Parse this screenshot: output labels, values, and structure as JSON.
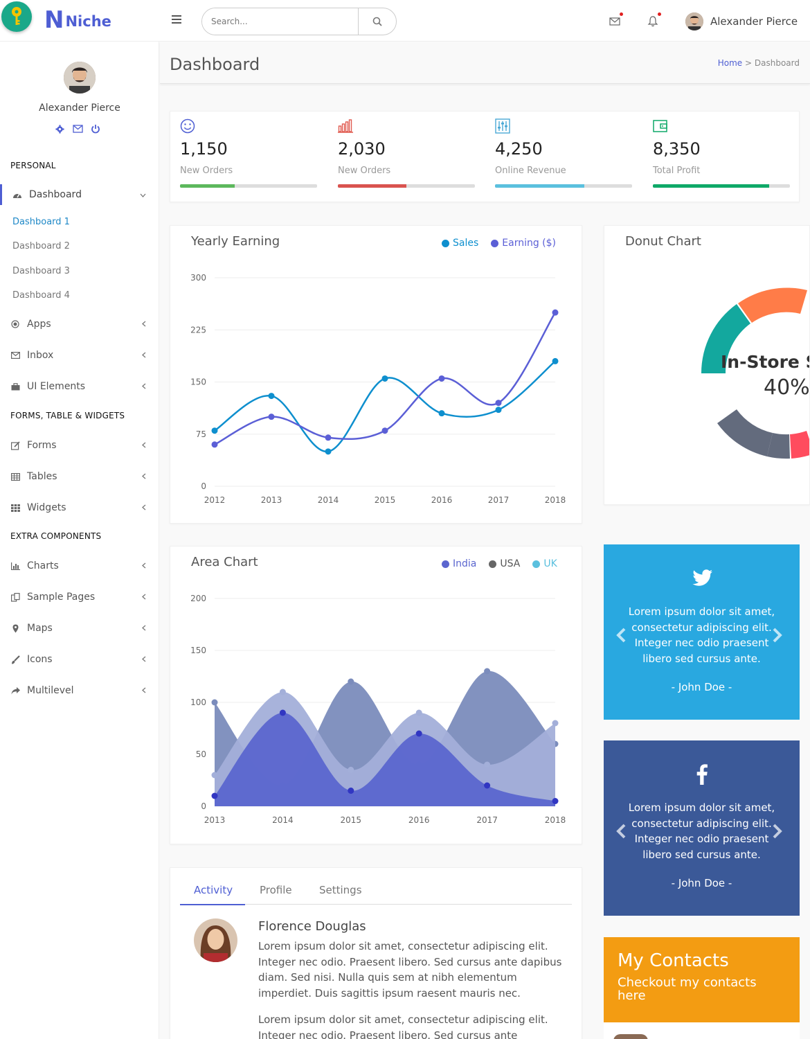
{
  "brand": {
    "letter": "N",
    "name": "Niche"
  },
  "search": {
    "placeholder": "Search..."
  },
  "user": {
    "name": "Alexander Pierce"
  },
  "sidebar": {
    "profile_name": "Alexander Pierce",
    "headers": [
      "PERSONAL",
      "FORMS, TABLE & WIDGETS",
      "EXTRA COMPONENTS"
    ],
    "dashboard": {
      "label": "Dashboard",
      "sub": [
        "Dashboard 1",
        "Dashboard 2",
        "Dashboard 3",
        "Dashboard 4"
      ]
    },
    "items": [
      {
        "label": "Apps",
        "icon": "target-icon"
      },
      {
        "label": "Inbox",
        "icon": "envelope-icon"
      },
      {
        "label": "UI Elements",
        "icon": "briefcase-icon"
      },
      {
        "label": "Forms",
        "icon": "edit-icon"
      },
      {
        "label": "Tables",
        "icon": "table-icon"
      },
      {
        "label": "Widgets",
        "icon": "grid-icon"
      },
      {
        "label": "Charts",
        "icon": "bar-chart-icon"
      },
      {
        "label": "Sample Pages",
        "icon": "copy-icon"
      },
      {
        "label": "Maps",
        "icon": "map-pin-icon"
      },
      {
        "label": "Icons",
        "icon": "paint-brush-icon"
      },
      {
        "label": "Multilevel",
        "icon": "share-icon"
      }
    ]
  },
  "page": {
    "title": "Dashboard",
    "breadcrumb_home": "Home",
    "breadcrumb_sep": ">",
    "breadcrumb_current": "Dashboard"
  },
  "stats": [
    {
      "value": "1,150",
      "label": "New Orders",
      "progress": 0.4,
      "color": "#5cb85c",
      "icon": "smile-icon"
    },
    {
      "value": "2,030",
      "label": "New Orders",
      "progress": 0.5,
      "color": "#d9534f",
      "icon": "bar-chart-icon"
    },
    {
      "value": "4,250",
      "label": "Online Revenue",
      "progress": 0.65,
      "color": "#5bc0de",
      "icon": "sliders-icon"
    },
    {
      "value": "8,350",
      "label": "Total Profit",
      "progress": 0.85,
      "color": "#0fa968",
      "icon": "wallet-icon"
    }
  ],
  "line_card": {
    "title": "Yearly Earning",
    "legend": [
      "Sales",
      "Earning ($)"
    ]
  },
  "area_card": {
    "title": "Area Chart",
    "legend": [
      "India",
      "USA",
      "UK"
    ]
  },
  "donut_card": {
    "title": "Donut Chart",
    "center_label": "In-Store Sales",
    "center_value": "40%"
  },
  "chart_data": [
    {
      "type": "line",
      "title": "Yearly Earning",
      "x": [
        "2012",
        "2013",
        "2014",
        "2015",
        "2016",
        "2017",
        "2018"
      ],
      "ylim": [
        0,
        300
      ],
      "yticks": [
        0,
        75,
        150,
        225,
        300
      ],
      "series": [
        {
          "name": "Sales",
          "color": "#0e8fce",
          "values": [
            80,
            130,
            50,
            155,
            105,
            110,
            180
          ]
        },
        {
          "name": "Earning ($)",
          "color": "#5b5fd6",
          "values": [
            60,
            100,
            70,
            80,
            155,
            120,
            250
          ]
        }
      ],
      "legend_position": "top-right",
      "grid": true
    },
    {
      "type": "area",
      "title": "Area Chart",
      "x": [
        "2013",
        "2014",
        "2015",
        "2016",
        "2017",
        "2018"
      ],
      "ylim": [
        0,
        200
      ],
      "yticks": [
        0,
        50,
        100,
        150,
        200
      ],
      "series": [
        {
          "name": "USA",
          "color": "#7b8cbc",
          "values": [
            100,
            20,
            120,
            40,
            130,
            60
          ]
        },
        {
          "name": "UK",
          "color": "#a3afd9",
          "values": [
            30,
            110,
            35,
            90,
            40,
            80
          ]
        },
        {
          "name": "India",
          "color": "#5b66cf",
          "values": [
            10,
            90,
            15,
            70,
            20,
            5
          ]
        }
      ],
      "legend_position": "top-right",
      "grid": true
    },
    {
      "type": "pie",
      "title": "Donut Chart",
      "categories": [
        "In-Store Sales"
      ],
      "values": [
        40
      ],
      "center_label": "In-Store Sales",
      "center_value": "40%"
    }
  ],
  "twitter": {
    "icon": "twitter-icon",
    "quote": "Lorem ipsum dolor sit amet, consectetur adipiscing elit. Integer nec odio praesent libero sed cursus ante.",
    "author": "- John Doe -",
    "color": "#29a8e0"
  },
  "facebook": {
    "icon": "facebook-icon",
    "quote": "Lorem ipsum dolor sit amet, consectetur adipiscing elit. Integer nec odio praesent libero sed cursus ante.",
    "author": "- John Doe -",
    "color": "#3b5998"
  },
  "contacts": {
    "title": "My Contacts",
    "subtitle": "Checkout my contacts here",
    "color": "#f39c12"
  },
  "tabs": [
    "Activity",
    "Profile",
    "Settings"
  ],
  "activity": {
    "name": "Florence Douglas",
    "text1": "Lorem ipsum dolor sit amet, consectetur adipiscing elit. Integer nec odio. Praesent libero. Sed cursus ante dapibus diam. Sed nisi. Nulla quis sem at nibh elementum imperdiet. Duis sagittis ipsum raesent mauris nec.",
    "text2": "Lorem ipsum dolor sit amet, consectetur adipiscing elit. Integer nec odio. Praesent libero. Sed cursus ante"
  },
  "colors": {
    "accent": "#4e5ed3",
    "link": "#1e88c7",
    "twitter": "#29a8e0",
    "facebook": "#3b5998",
    "contacts": "#f39c12"
  }
}
